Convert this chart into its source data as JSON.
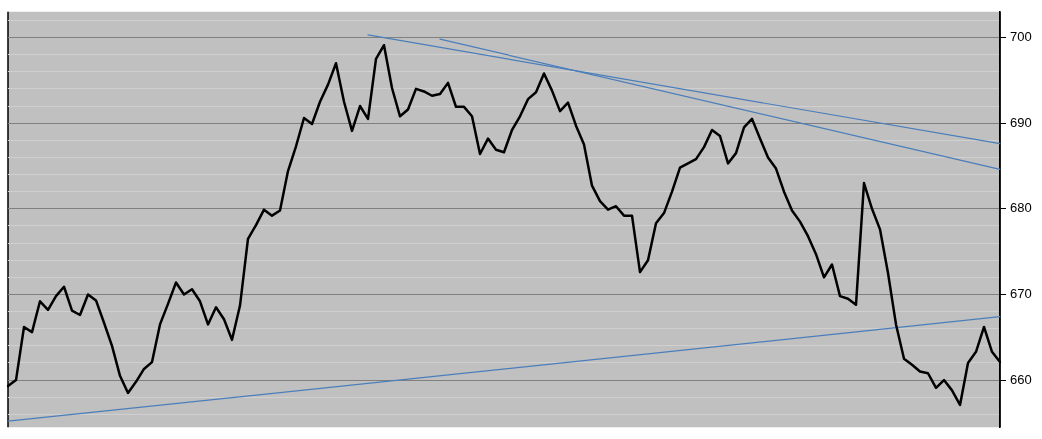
{
  "chart_data": {
    "type": "line",
    "categories": [
      null,
      null,
      null,
      null,
      null,
      null,
      null,
      null,
      null,
      null,
      null,
      null,
      null,
      null,
      null,
      null,
      null,
      null,
      null,
      null,
      null,
      null,
      null,
      null,
      null,
      null,
      null,
      null,
      null,
      null,
      null,
      null,
      null,
      null,
      null,
      null,
      null,
      null,
      null,
      null,
      null,
      null,
      null,
      null,
      null,
      null,
      null,
      null,
      null,
      null,
      null,
      null,
      null,
      null,
      null,
      null,
      null,
      null,
      null,
      null,
      null,
      null,
      null,
      null,
      null,
      null,
      null,
      null,
      null,
      null,
      null,
      null,
      null,
      null,
      null,
      null,
      null,
      null,
      null,
      null,
      null,
      null,
      null,
      null,
      null,
      null,
      null,
      null,
      null,
      null,
      null,
      null,
      null,
      null,
      null,
      null,
      null,
      null,
      null,
      null,
      null,
      null,
      null,
      null,
      null,
      null,
      null,
      null,
      null,
      null,
      null,
      null,
      null,
      null,
      null,
      null,
      null,
      null,
      null,
      null,
      null,
      null,
      null,
      null,
      null
    ],
    "series": [
      {
        "color": "#000000",
        "values": [
          659.3,
          660,
          666.2,
          665.6,
          669.2,
          668.2,
          669.8,
          670.9,
          668.1,
          667.6,
          670,
          669.3,
          666.7,
          664,
          660.5,
          658.5,
          659.8,
          661.3,
          662.1,
          666.5,
          668.9,
          671.4,
          670,
          670.6,
          669.2,
          666.5,
          668.5,
          667.1,
          664.7,
          668.7,
          676.5,
          678.1,
          679.9,
          679.2,
          679.8,
          684.4,
          687.3,
          690.6,
          689.9,
          692.5,
          694.5,
          697,
          692.5,
          689.1,
          692,
          690.5,
          697.5,
          699.1,
          694.1,
          690.8,
          691.6,
          694,
          693.7,
          693.2,
          693.4,
          694.7,
          691.9,
          691.9,
          690.8,
          686.4,
          688.2,
          686.9,
          686.6,
          689.2,
          690.8,
          692.8,
          693.6,
          695.8,
          693.8,
          691.4,
          692.4,
          689.7,
          687.5,
          682.7,
          680.9,
          679.9,
          680.3,
          679.2,
          679.2,
          672.6,
          674,
          678.3,
          679.5,
          682,
          684.8,
          685.3,
          685.8,
          687.2,
          689.2,
          688.5,
          685.3,
          686.5,
          689.5,
          690.5,
          688.2,
          686,
          684.7,
          682,
          679.8,
          678.5,
          676.8,
          674.7,
          672,
          673.5,
          669.8,
          669.5,
          668.8,
          683,
          680,
          677.6,
          672.5,
          666.5,
          662.5,
          661.8,
          661,
          660.8,
          659.1,
          660,
          658.8,
          657.1,
          662,
          663.3,
          666.2,
          663.3,
          662.1
        ]
      },
      {
        "type": "line",
        "color": "#4a7ebb",
        "values": [
          655.2,
          null,
          null,
          null,
          null,
          null,
          null,
          null,
          null,
          null,
          null,
          null,
          null,
          null,
          null,
          null,
          null,
          null,
          null,
          null,
          null,
          null,
          null,
          null,
          null,
          null,
          null,
          null,
          null,
          null,
          null,
          null,
          null,
          null,
          null,
          null,
          null,
          null,
          null,
          null,
          null,
          null,
          null,
          null,
          null,
          null,
          null,
          null,
          null,
          null,
          null,
          null,
          null,
          null,
          null,
          null,
          null,
          null,
          null,
          null,
          null,
          null,
          null,
          null,
          null,
          null,
          null,
          null,
          null,
          null,
          null,
          null,
          null,
          null,
          null,
          null,
          null,
          null,
          null,
          null,
          null,
          null,
          null,
          null,
          null,
          null,
          null,
          null,
          null,
          null,
          null,
          null,
          null,
          null,
          null,
          null,
          null,
          null,
          null,
          null,
          null,
          null,
          null,
          null,
          null,
          null,
          null,
          null,
          null,
          null,
          null,
          null,
          null,
          null,
          null,
          null,
          null,
          null,
          null,
          null,
          null,
          null,
          null,
          null,
          667.4
        ]
      },
      {
        "type": "line",
        "color": "#4a7ebb",
        "values": [
          null,
          null,
          null,
          null,
          null,
          null,
          null,
          null,
          null,
          null,
          null,
          null,
          null,
          null,
          null,
          null,
          null,
          null,
          null,
          null,
          null,
          null,
          null,
          null,
          null,
          null,
          null,
          null,
          null,
          null,
          null,
          null,
          null,
          null,
          null,
          null,
          null,
          null,
          null,
          null,
          null,
          null,
          null,
          null,
          null,
          700.3,
          null,
          null,
          null,
          null,
          null,
          null,
          null,
          null,
          null,
          null,
          null,
          null,
          null,
          null,
          null,
          null,
          null,
          null,
          null,
          null,
          null,
          null,
          null,
          null,
          null,
          null,
          null,
          null,
          null,
          null,
          null,
          null,
          null,
          null,
          null,
          null,
          null,
          null,
          null,
          null,
          null,
          null,
          null,
          null,
          null,
          null,
          null,
          null,
          null,
          null,
          null,
          null,
          null,
          null,
          null,
          null,
          null,
          null,
          null,
          null,
          null,
          null,
          null,
          null,
          null,
          null,
          null,
          null,
          null,
          null,
          null,
          null,
          null,
          null,
          null,
          null,
          null,
          null,
          687.6
        ]
      },
      {
        "type": "line",
        "color": "#4a7ebb",
        "values": [
          null,
          null,
          null,
          null,
          null,
          null,
          null,
          null,
          null,
          null,
          null,
          null,
          null,
          null,
          null,
          null,
          null,
          null,
          null,
          null,
          null,
          null,
          null,
          null,
          null,
          null,
          null,
          null,
          null,
          null,
          null,
          null,
          null,
          null,
          null,
          null,
          null,
          null,
          null,
          null,
          null,
          null,
          null,
          null,
          null,
          null,
          null,
          null,
          null,
          null,
          null,
          null,
          null,
          null,
          699.8,
          null,
          null,
          null,
          null,
          null,
          null,
          null,
          null,
          null,
          null,
          null,
          null,
          null,
          null,
          null,
          null,
          null,
          null,
          null,
          null,
          null,
          null,
          null,
          null,
          null,
          null,
          null,
          null,
          null,
          null,
          null,
          null,
          null,
          null,
          null,
          null,
          null,
          null,
          null,
          null,
          null,
          null,
          null,
          null,
          null,
          null,
          null,
          null,
          null,
          null,
          null,
          null,
          null,
          null,
          null,
          null,
          null,
          null,
          null,
          null,
          null,
          null,
          null,
          null,
          null,
          null,
          null,
          null,
          null,
          684.6
        ]
      }
    ],
    "ylim": [
      654.5,
      703
    ],
    "yticks": [
      {
        "value": 656,
        "label": null
      },
      {
        "value": 658,
        "label": null
      },
      660,
      {
        "value": 662,
        "label": null
      },
      {
        "value": 664,
        "label": null
      },
      {
        "value": 666,
        "label": null
      },
      {
        "value": 668,
        "label": null
      },
      670,
      {
        "value": 672,
        "label": null
      },
      {
        "value": 674,
        "label": null
      },
      {
        "value": 676,
        "label": null
      },
      {
        "value": 678,
        "label": null
      },
      680,
      {
        "value": 682,
        "label": null
      },
      {
        "value": 684,
        "label": null
      },
      {
        "value": 686,
        "label": null
      },
      {
        "value": 688,
        "label": null
      },
      690,
      {
        "value": 692,
        "label": null
      },
      {
        "value": 694,
        "label": null
      },
      {
        "value": 696,
        "label": null
      },
      {
        "value": 698,
        "label": null
      },
      700,
      {
        "value": 702,
        "label": null
      }
    ],
    "grid": "y",
    "tick_labels": "y",
    "marker": "none"
  }
}
